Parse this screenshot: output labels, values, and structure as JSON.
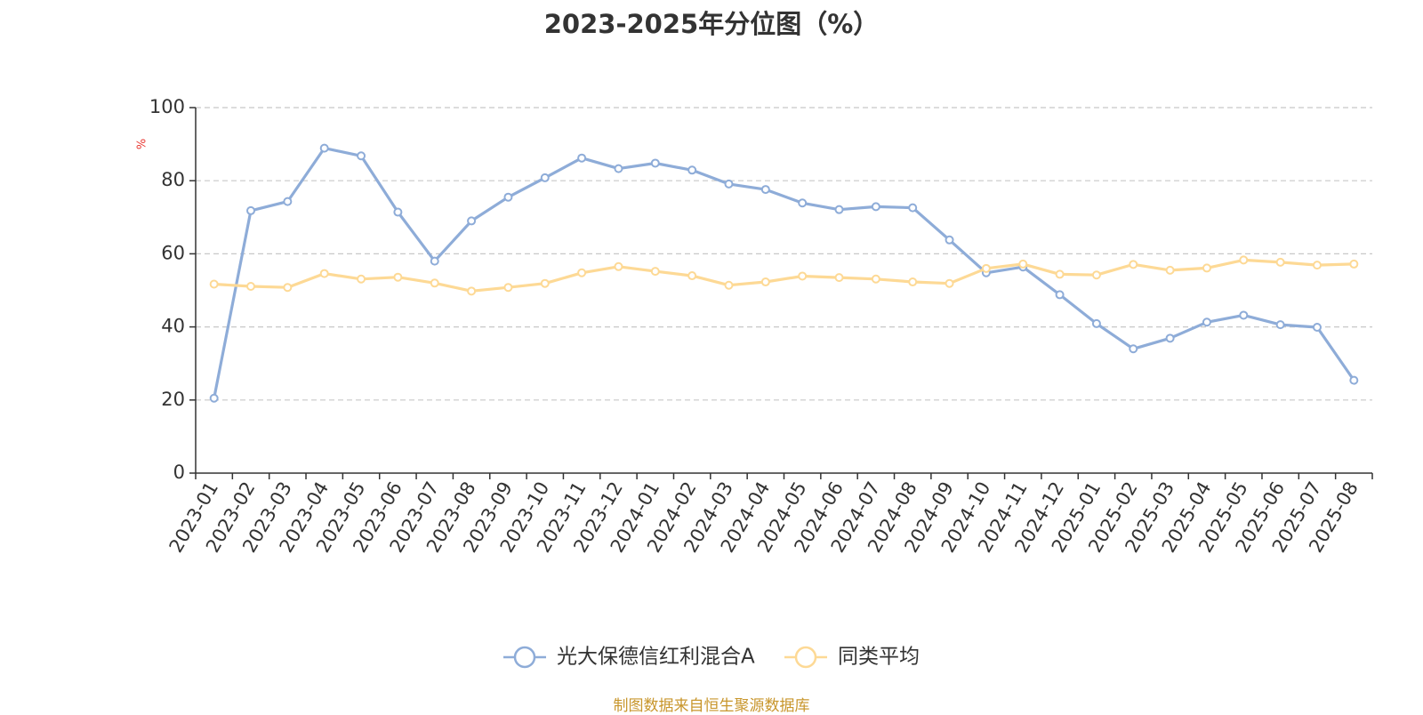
{
  "title": "2023-2025年分位图（%）",
  "source": "制图数据来自恒生聚源数据库",
  "chart_data": {
    "type": "line",
    "title": "2023-2025年分位图（%）",
    "ylabel": "%",
    "xlabel": "",
    "ylim": [
      0,
      100
    ],
    "yticks": [
      0,
      20,
      40,
      60,
      80,
      100
    ],
    "grid": true,
    "legend_position": "bottom-center",
    "categories": [
      "2023-01",
      "2023-02",
      "2023-03",
      "2023-04",
      "2023-05",
      "2023-06",
      "2023-07",
      "2023-08",
      "2023-09",
      "2023-10",
      "2023-11",
      "2023-12",
      "2024-01",
      "2024-02",
      "2024-03",
      "2024-04",
      "2024-05",
      "2024-06",
      "2024-07",
      "2024-08",
      "2024-09",
      "2024-10",
      "2024-11",
      "2024-12",
      "2025-01",
      "2025-02",
      "2025-03",
      "2025-04",
      "2025-05",
      "2025-06",
      "2025-07",
      "2025-08"
    ],
    "series": [
      {
        "name": "光大保德信红利混合A",
        "color": "#8eacd8",
        "values": [
          20.5,
          71.8,
          74.3,
          88.9,
          86.8,
          71.4,
          58.0,
          69.0,
          75.5,
          80.8,
          86.2,
          83.3,
          84.8,
          82.9,
          79.1,
          77.6,
          73.9,
          72.1,
          72.9,
          72.6,
          63.8,
          54.8,
          56.4,
          48.8,
          40.9,
          34.0,
          36.9,
          41.3,
          43.2,
          40.6,
          39.9,
          25.4
        ]
      },
      {
        "name": "同类平均",
        "color": "#fdd995",
        "values": [
          51.7,
          51.1,
          50.8,
          54.6,
          53.1,
          53.6,
          52.0,
          49.8,
          50.8,
          51.9,
          54.8,
          56.5,
          55.2,
          54.0,
          51.4,
          52.3,
          53.9,
          53.5,
          53.1,
          52.3,
          51.9,
          56.0,
          57.2,
          54.4,
          54.2,
          57.1,
          55.5,
          56.1,
          58.3,
          57.7,
          56.9,
          57.2
        ]
      }
    ]
  }
}
